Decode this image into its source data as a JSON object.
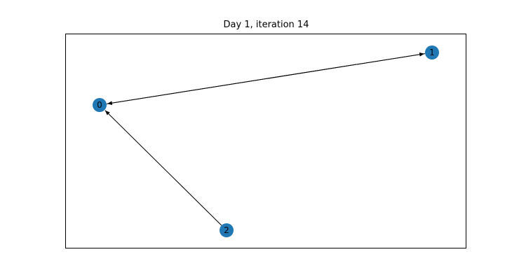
{
  "figure": {
    "title": "Day 1, iteration 14"
  },
  "graph": {
    "node_color": "#1f77b4",
    "edge_color": "#000000",
    "nodes": [
      {
        "id": "0",
        "label": "0"
      },
      {
        "id": "1",
        "label": "1"
      },
      {
        "id": "2",
        "label": "2"
      }
    ],
    "edges": [
      {
        "from": "0",
        "to": "1",
        "directed": true
      },
      {
        "from": "1",
        "to": "0",
        "directed": true
      },
      {
        "from": "2",
        "to": "0",
        "directed": true
      }
    ]
  }
}
